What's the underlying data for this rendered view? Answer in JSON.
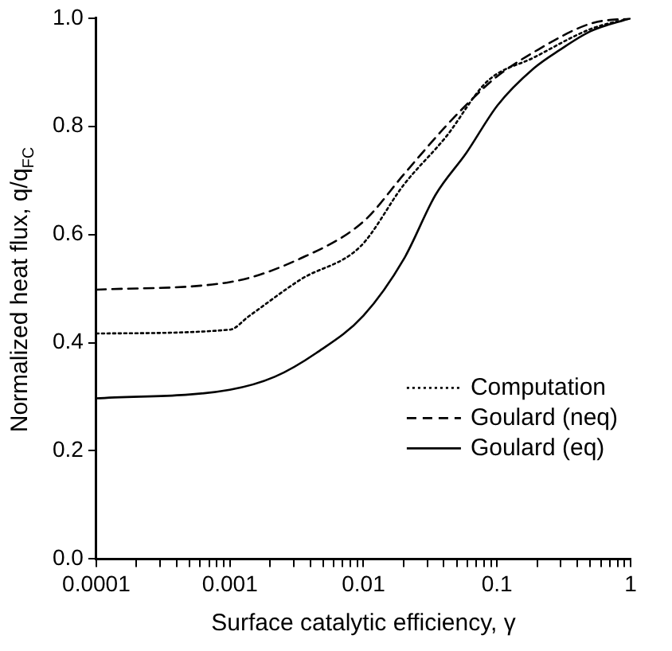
{
  "chart_data": {
    "type": "line",
    "xlabel": "Surface catalytic efficiency, γ",
    "ylabel": "Normalized heat flux, q/q$_{FC}$",
    "log": "x",
    "xlim": [
      0.0001,
      1
    ],
    "ylim": [
      0,
      1
    ],
    "xticks": [
      0.0001,
      {
        "value": 0.0002,
        "label": null
      },
      {
        "value": 0.0003,
        "label": null
      },
      {
        "value": 0.0004,
        "label": null
      },
      {
        "value": 0.0005,
        "label": null
      },
      {
        "value": 0.0006,
        "label": null
      },
      {
        "value": 0.0007,
        "label": null
      },
      {
        "value": 0.0008,
        "label": null
      },
      {
        "value": 0.0009,
        "label": null
      },
      0.001,
      {
        "value": 0.002,
        "label": null
      },
      {
        "value": 0.003,
        "label": null
      },
      {
        "value": 0.004,
        "label": null
      },
      {
        "value": 0.005,
        "label": null
      },
      {
        "value": 0.006,
        "label": null
      },
      {
        "value": 0.007,
        "label": null
      },
      {
        "value": 0.008,
        "label": null
      },
      {
        "value": 0.009,
        "label": null
      },
      0.01,
      {
        "value": 0.02,
        "label": null
      },
      {
        "value": 0.03,
        "label": null
      },
      {
        "value": 0.04,
        "label": null
      },
      {
        "value": 0.05,
        "label": null
      },
      {
        "value": 0.06,
        "label": null
      },
      {
        "value": 0.07,
        "label": null
      },
      {
        "value": 0.08,
        "label": null
      },
      {
        "value": 0.09,
        "label": null
      },
      0.1,
      {
        "value": 0.2,
        "label": null
      },
      {
        "value": 0.3,
        "label": null
      },
      {
        "value": 0.4,
        "label": null
      },
      {
        "value": 0.5,
        "label": null
      },
      {
        "value": 0.6,
        "label": null
      },
      {
        "value": 0.7,
        "label": null
      },
      {
        "value": 0.8,
        "label": null
      },
      {
        "value": 0.9,
        "label": null
      },
      1
    ],
    "yticks": [
      {
        "value": 0,
        "label": "0.0"
      },
      {
        "value": 0.2,
        "label": "0.2"
      },
      {
        "value": 0.4,
        "label": "0.4"
      },
      {
        "value": 0.6,
        "label": "0.6"
      },
      {
        "value": 0.8,
        "label": "0.8"
      },
      {
        "value": 1,
        "label": "1.0"
      }
    ],
    "grid": false,
    "legend": "bottom right",
    "marker": "none",
    "series": [
      {
        "name": "Computation",
        "color": "#000000",
        "line_style": "dotted",
        "x": [
          0.0001,
          0.001,
          0.00139,
          0.0034,
          0.0095,
          0.0202,
          0.0413,
          0.0844,
          0.188,
          0.503,
          1
        ],
        "values": [
          0.417,
          0.424,
          0.449,
          0.517,
          0.578,
          0.693,
          0.78,
          0.883,
          0.927,
          0.98,
          1.0
        ]
      },
      {
        "name": "Goulard (neq)",
        "color": "#000000",
        "line_style": "dashed",
        "x": [
          0.0001,
          0.001,
          0.0034,
          0.01,
          0.0202,
          0.0413,
          0.0772,
          0.101,
          0.188,
          0.503,
          1
        ],
        "values": [
          0.498,
          0.512,
          0.556,
          0.624,
          0.712,
          0.8,
          0.868,
          0.893,
          0.937,
          0.99,
          1.0
        ]
      },
      {
        "name": "Goulard (eq)",
        "color": "#000000",
        "line_style": "solid",
        "x": [
          0.0001,
          0.001,
          0.00217,
          0.00444,
          0.01,
          0.0202,
          0.0346,
          0.059,
          0.101,
          0.188,
          0.294,
          0.503,
          1
        ],
        "values": [
          0.297,
          0.313,
          0.337,
          0.381,
          0.45,
          0.556,
          0.673,
          0.751,
          0.839,
          0.907,
          0.941,
          0.976,
          1.0
        ]
      }
    ]
  }
}
